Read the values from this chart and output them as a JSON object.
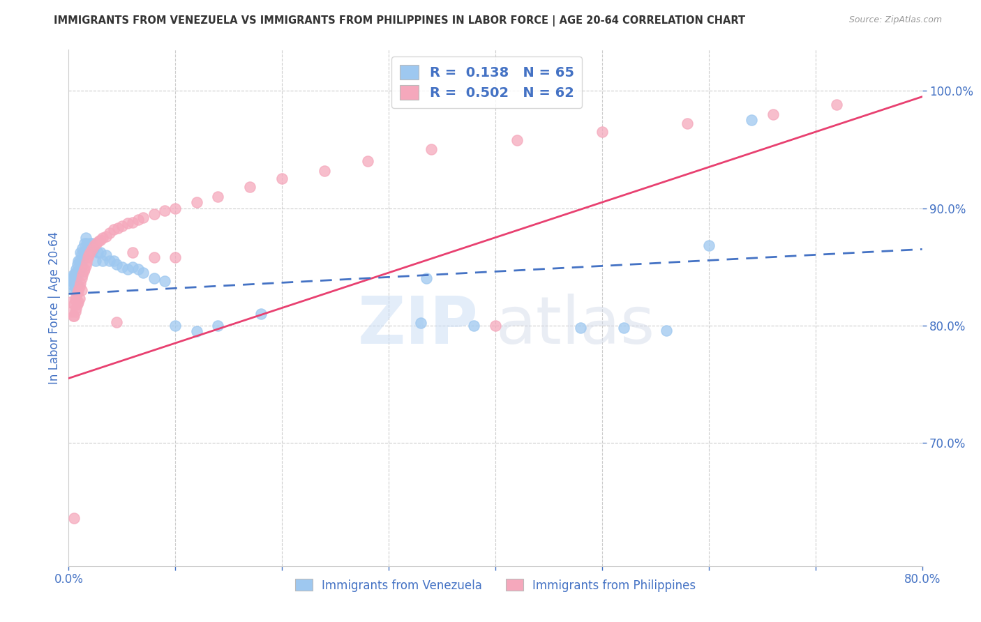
{
  "title": "IMMIGRANTS FROM VENEZUELA VS IMMIGRANTS FROM PHILIPPINES IN LABOR FORCE | AGE 20-64 CORRELATION CHART",
  "source": "Source: ZipAtlas.com",
  "ylabel": "In Labor Force | Age 20-64",
  "legend_labels": [
    "Immigrants from Venezuela",
    "Immigrants from Philippines"
  ],
  "r_venezuela": 0.138,
  "n_venezuela": 65,
  "r_philippines": 0.502,
  "n_philippines": 62,
  "blue_color": "#9EC8F0",
  "pink_color": "#F5A8BC",
  "blue_line_color": "#4472C4",
  "pink_line_color": "#E84070",
  "title_color": "#333333",
  "source_color": "#999999",
  "axis_label_color": "#4472C4",
  "tick_color": "#4472C4",
  "background_color": "#FFFFFF",
  "watermark_zip": "ZIP",
  "watermark_atlas": "atlas",
  "xmin": 0.0,
  "xmax": 0.8,
  "ymin": 0.595,
  "ymax": 1.035,
  "ylabel_right_values": [
    1.0,
    0.9,
    0.8,
    0.7
  ],
  "ylabel_right_labels": [
    "100.0%",
    "90.0%",
    "80.0%",
    "70.0%"
  ],
  "ven_trend_x0": 0.0,
  "ven_trend_y0": 0.827,
  "ven_trend_x1": 0.8,
  "ven_trend_y1": 0.865,
  "phi_trend_x0": 0.0,
  "phi_trend_y0": 0.755,
  "phi_trend_x1": 0.8,
  "phi_trend_y1": 0.995,
  "venezuela_x": [
    0.002,
    0.003,
    0.003,
    0.004,
    0.004,
    0.005,
    0.005,
    0.005,
    0.006,
    0.006,
    0.006,
    0.007,
    0.007,
    0.007,
    0.008,
    0.008,
    0.008,
    0.009,
    0.009,
    0.01,
    0.01,
    0.011,
    0.011,
    0.012,
    0.012,
    0.013,
    0.013,
    0.014,
    0.015,
    0.015,
    0.016,
    0.017,
    0.018,
    0.019,
    0.02,
    0.021,
    0.022,
    0.023,
    0.025,
    0.027,
    0.03,
    0.032,
    0.035,
    0.038,
    0.042,
    0.045,
    0.05,
    0.055,
    0.06,
    0.065,
    0.07,
    0.08,
    0.09,
    0.1,
    0.12,
    0.14,
    0.18,
    0.33,
    0.38,
    0.48,
    0.52,
    0.56,
    0.6,
    0.64,
    0.335
  ],
  "venezuela_y": [
    0.838,
    0.84,
    0.835,
    0.843,
    0.838,
    0.842,
    0.836,
    0.83,
    0.845,
    0.838,
    0.832,
    0.848,
    0.84,
    0.833,
    0.852,
    0.843,
    0.835,
    0.855,
    0.847,
    0.855,
    0.847,
    0.862,
    0.854,
    0.861,
    0.851,
    0.866,
    0.856,
    0.862,
    0.87,
    0.86,
    0.875,
    0.87,
    0.867,
    0.862,
    0.87,
    0.863,
    0.87,
    0.865,
    0.855,
    0.862,
    0.862,
    0.855,
    0.86,
    0.855,
    0.855,
    0.852,
    0.85,
    0.848,
    0.85,
    0.848,
    0.845,
    0.84,
    0.838,
    0.8,
    0.795,
    0.8,
    0.81,
    0.802,
    0.8,
    0.798,
    0.798,
    0.796,
    0.868,
    0.975,
    0.84
  ],
  "philippines_x": [
    0.002,
    0.003,
    0.004,
    0.005,
    0.005,
    0.006,
    0.006,
    0.007,
    0.007,
    0.008,
    0.008,
    0.009,
    0.009,
    0.01,
    0.01,
    0.011,
    0.012,
    0.012,
    0.013,
    0.014,
    0.015,
    0.016,
    0.017,
    0.018,
    0.019,
    0.02,
    0.022,
    0.024,
    0.026,
    0.028,
    0.03,
    0.032,
    0.035,
    0.038,
    0.042,
    0.046,
    0.05,
    0.055,
    0.06,
    0.065,
    0.07,
    0.08,
    0.09,
    0.1,
    0.12,
    0.14,
    0.17,
    0.2,
    0.24,
    0.28,
    0.34,
    0.42,
    0.5,
    0.58,
    0.66,
    0.72,
    0.1,
    0.08,
    0.4,
    0.06,
    0.045,
    0.005
  ],
  "philippines_y": [
    0.82,
    0.812,
    0.808,
    0.818,
    0.808,
    0.822,
    0.812,
    0.825,
    0.815,
    0.828,
    0.818,
    0.83,
    0.82,
    0.833,
    0.823,
    0.836,
    0.84,
    0.83,
    0.843,
    0.846,
    0.848,
    0.851,
    0.854,
    0.858,
    0.86,
    0.862,
    0.865,
    0.868,
    0.87,
    0.872,
    0.873,
    0.875,
    0.876,
    0.879,
    0.882,
    0.883,
    0.885,
    0.887,
    0.888,
    0.89,
    0.892,
    0.895,
    0.898,
    0.9,
    0.905,
    0.91,
    0.918,
    0.925,
    0.932,
    0.94,
    0.95,
    0.958,
    0.965,
    0.972,
    0.98,
    0.988,
    0.858,
    0.858,
    0.8,
    0.862,
    0.803,
    0.636
  ]
}
